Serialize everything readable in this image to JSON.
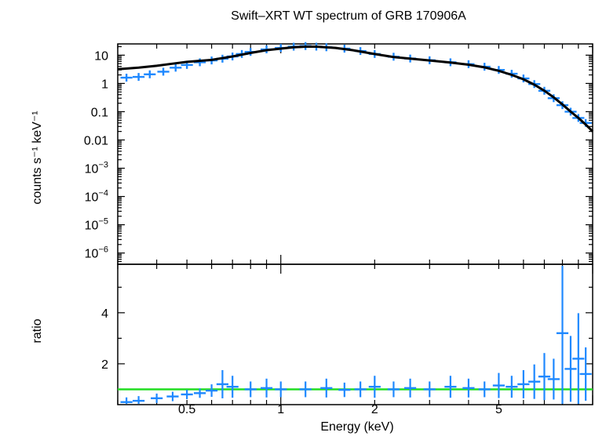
{
  "chart_data": [
    {
      "type": "line",
      "panel": "spectrum",
      "title": "Swift–XRT WT spectrum of GRB 170906A",
      "ylabel": "counts s⁻¹ keV⁻¹",
      "xlabel": "",
      "xscale": "log",
      "yscale": "log",
      "xlim": [
        0.3,
        10
      ],
      "ylim": [
        4e-07,
        25
      ],
      "y_ticks": [
        {
          "value": 10,
          "label": "10"
        },
        {
          "value": 1,
          "label": "1"
        },
        {
          "value": 0.1,
          "label": "0.1"
        },
        {
          "value": 0.01,
          "label": "0.01"
        },
        {
          "value": 0.001,
          "label": "10⁻³"
        },
        {
          "value": 0.0001,
          "label": "10⁻⁴"
        },
        {
          "value": 1e-05,
          "label": "10⁻⁵"
        },
        {
          "value": 1e-06,
          "label": "10⁻⁶"
        }
      ],
      "series": [
        {
          "kind": "data",
          "color": "#1e88ff",
          "x": [
            0.32,
            0.35,
            0.38,
            0.42,
            0.46,
            0.5,
            0.55,
            0.6,
            0.65,
            0.7,
            0.75,
            0.8,
            0.9,
            1.0,
            1.1,
            1.2,
            1.3,
            1.4,
            1.6,
            1.8,
            2.0,
            2.3,
            2.6,
            3.0,
            3.5,
            4.0,
            4.5,
            5.0,
            5.5,
            6.0,
            6.5,
            7.0,
            7.5,
            8.0,
            8.5,
            9.0,
            9.5
          ],
          "y": [
            1.6,
            1.7,
            2.1,
            2.6,
            3.6,
            4.5,
            5.6,
            6.5,
            7.5,
            9.0,
            11,
            13,
            16,
            18,
            20,
            21,
            20,
            19,
            17,
            14,
            11,
            8.8,
            7.6,
            6.6,
            5.6,
            4.8,
            3.9,
            3.0,
            2.2,
            1.5,
            0.95,
            0.55,
            0.3,
            0.17,
            0.1,
            0.06,
            0.04
          ]
        },
        {
          "kind": "model",
          "color": "#000000",
          "x": [
            0.3,
            0.35,
            0.4,
            0.45,
            0.5,
            0.6,
            0.7,
            0.8,
            0.9,
            1.0,
            1.1,
            1.2,
            1.3,
            1.5,
            1.7,
            2.0,
            2.3,
            2.6,
            3.0,
            3.5,
            4.0,
            4.5,
            5.0,
            5.5,
            6.0,
            6.5,
            7.0,
            7.5,
            8.0,
            8.5,
            9.0,
            9.5,
            10.0
          ],
          "y": [
            3.2,
            3.6,
            4.2,
            5.0,
            5.8,
            6.8,
            9.0,
            12,
            15,
            17,
            19,
            20,
            20,
            18,
            15,
            11,
            8.6,
            7.5,
            6.5,
            5.5,
            4.6,
            3.7,
            2.8,
            2.0,
            1.4,
            0.9,
            0.55,
            0.32,
            0.18,
            0.1,
            0.06,
            0.035,
            0.02
          ]
        }
      ]
    },
    {
      "type": "line",
      "panel": "ratio",
      "title": "",
      "ylabel": "ratio",
      "xlabel": "Energy (keV)",
      "xscale": "log",
      "yscale": "linear",
      "xlim": [
        0.3,
        10
      ],
      "ylim": [
        0.4,
        5.9
      ],
      "x_ticks": [
        {
          "value": 0.5,
          "label": "0.5"
        },
        {
          "value": 1,
          "label": "1"
        },
        {
          "value": 2,
          "label": "2"
        },
        {
          "value": 5,
          "label": "5"
        }
      ],
      "y_ticks": [
        {
          "value": 2,
          "label": "2"
        },
        {
          "value": 4,
          "label": "4"
        }
      ],
      "reference_line": {
        "y": 1,
        "color": "#22dd22"
      },
      "series": [
        {
          "kind": "data",
          "color": "#1e88ff",
          "x": [
            0.32,
            0.35,
            0.4,
            0.45,
            0.5,
            0.55,
            0.6,
            0.65,
            0.7,
            0.8,
            0.9,
            1.0,
            1.2,
            1.4,
            1.6,
            1.8,
            2.0,
            2.3,
            2.6,
            3.0,
            3.5,
            4.0,
            4.5,
            5.0,
            5.5,
            6.0,
            6.5,
            7.0,
            7.5,
            8.0,
            8.5,
            9.0,
            9.5
          ],
          "y": [
            0.5,
            0.55,
            0.65,
            0.72,
            0.8,
            0.85,
            0.95,
            1.2,
            1.1,
            1.0,
            1.05,
            1.0,
            1.0,
            1.05,
            0.98,
            1.0,
            1.1,
            1.0,
            1.05,
            1.0,
            1.1,
            1.05,
            1.0,
            1.15,
            1.1,
            1.2,
            1.3,
            1.5,
            1.4,
            3.2,
            1.8,
            2.2,
            1.6
          ]
        }
      ]
    }
  ]
}
